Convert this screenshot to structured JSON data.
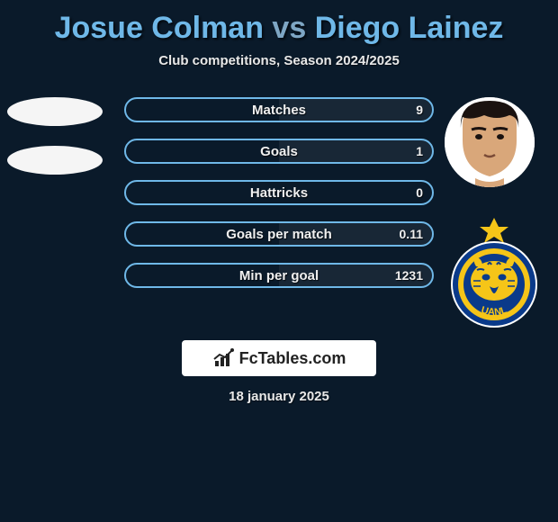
{
  "title": {
    "player1": "Josue Colman",
    "vs": " vs ",
    "player2": "Diego Lainez",
    "player1_color": "#6fb8e8",
    "player2_color": "#6fb8e8",
    "vs_color": "#7ea6c4"
  },
  "subtitle": "Club competitions, Season 2024/2025",
  "bars": [
    {
      "label": "Matches",
      "left": "",
      "right": "9",
      "left_pct": 0,
      "right_pct": 100
    },
    {
      "label": "Goals",
      "left": "",
      "right": "1",
      "left_pct": 0,
      "right_pct": 100
    },
    {
      "label": "Hattricks",
      "left": "",
      "right": "0",
      "left_pct": 0,
      "right_pct": 0
    },
    {
      "label": "Goals per match",
      "left": "",
      "right": "0.11",
      "left_pct": 0,
      "right_pct": 100
    },
    {
      "label": "Min per goal",
      "left": "",
      "right": "1231",
      "left_pct": 0,
      "right_pct": 100
    }
  ],
  "bar_style": {
    "border_color": "#6fb8e8",
    "label_color": "#f0f0f0",
    "fill_color": "rgba(255,255,255,0.06)"
  },
  "logo": {
    "text": "FcTables.com",
    "bg": "#ffffff",
    "text_color": "#222222"
  },
  "date": "18 january 2025",
  "background_color": "#0a1a2a",
  "left_player": {
    "has_photo": false,
    "has_badge": false
  },
  "right_player": {
    "has_photo": true,
    "face": {
      "skin": "#d9a77a",
      "hair": "#1a1210"
    },
    "badge": {
      "name": "Tigres UANL",
      "primary": "#0a3a8a",
      "secondary": "#f5c518",
      "text": "UANL"
    }
  }
}
